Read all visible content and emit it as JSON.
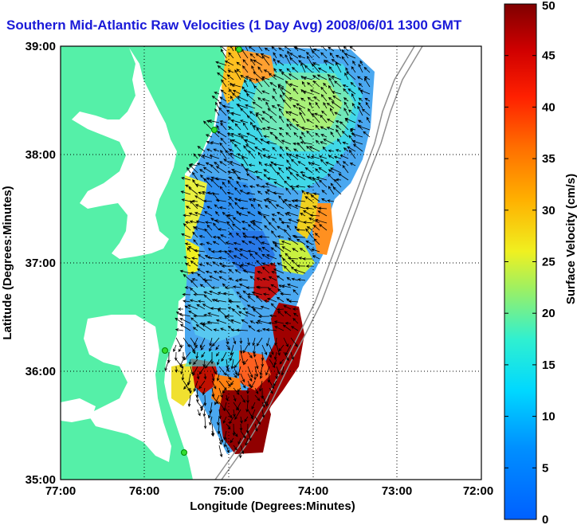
{
  "title": "Southern Mid-Atlantic Raw Velocities (1 Day Avg) 2008/06/01 1300 GMT",
  "x_axis": {
    "label": "Longitude (Degrees:Minutes)",
    "ticks": [
      "77:00",
      "76:00",
      "75:00",
      "74:00",
      "73:00",
      "72:00"
    ]
  },
  "y_axis": {
    "label": "Latitude (Degrees:Minutes)",
    "ticks": [
      "39:00",
      "38:00",
      "37:00",
      "36:00",
      "35:00"
    ]
  },
  "colorbar": {
    "label": "Surface Velocity (cm/s)",
    "ticks": [
      "0",
      "5",
      "10",
      "15",
      "20",
      "25",
      "30",
      "35",
      "40",
      "45",
      "50"
    ],
    "range": [
      0,
      50
    ],
    "colormap": "jet"
  },
  "colors": {
    "land": "#55f0a8",
    "water": "#ffffff",
    "title": "#1a1ad8",
    "arrows": "#000000",
    "stations": "#33dd33"
  }
}
